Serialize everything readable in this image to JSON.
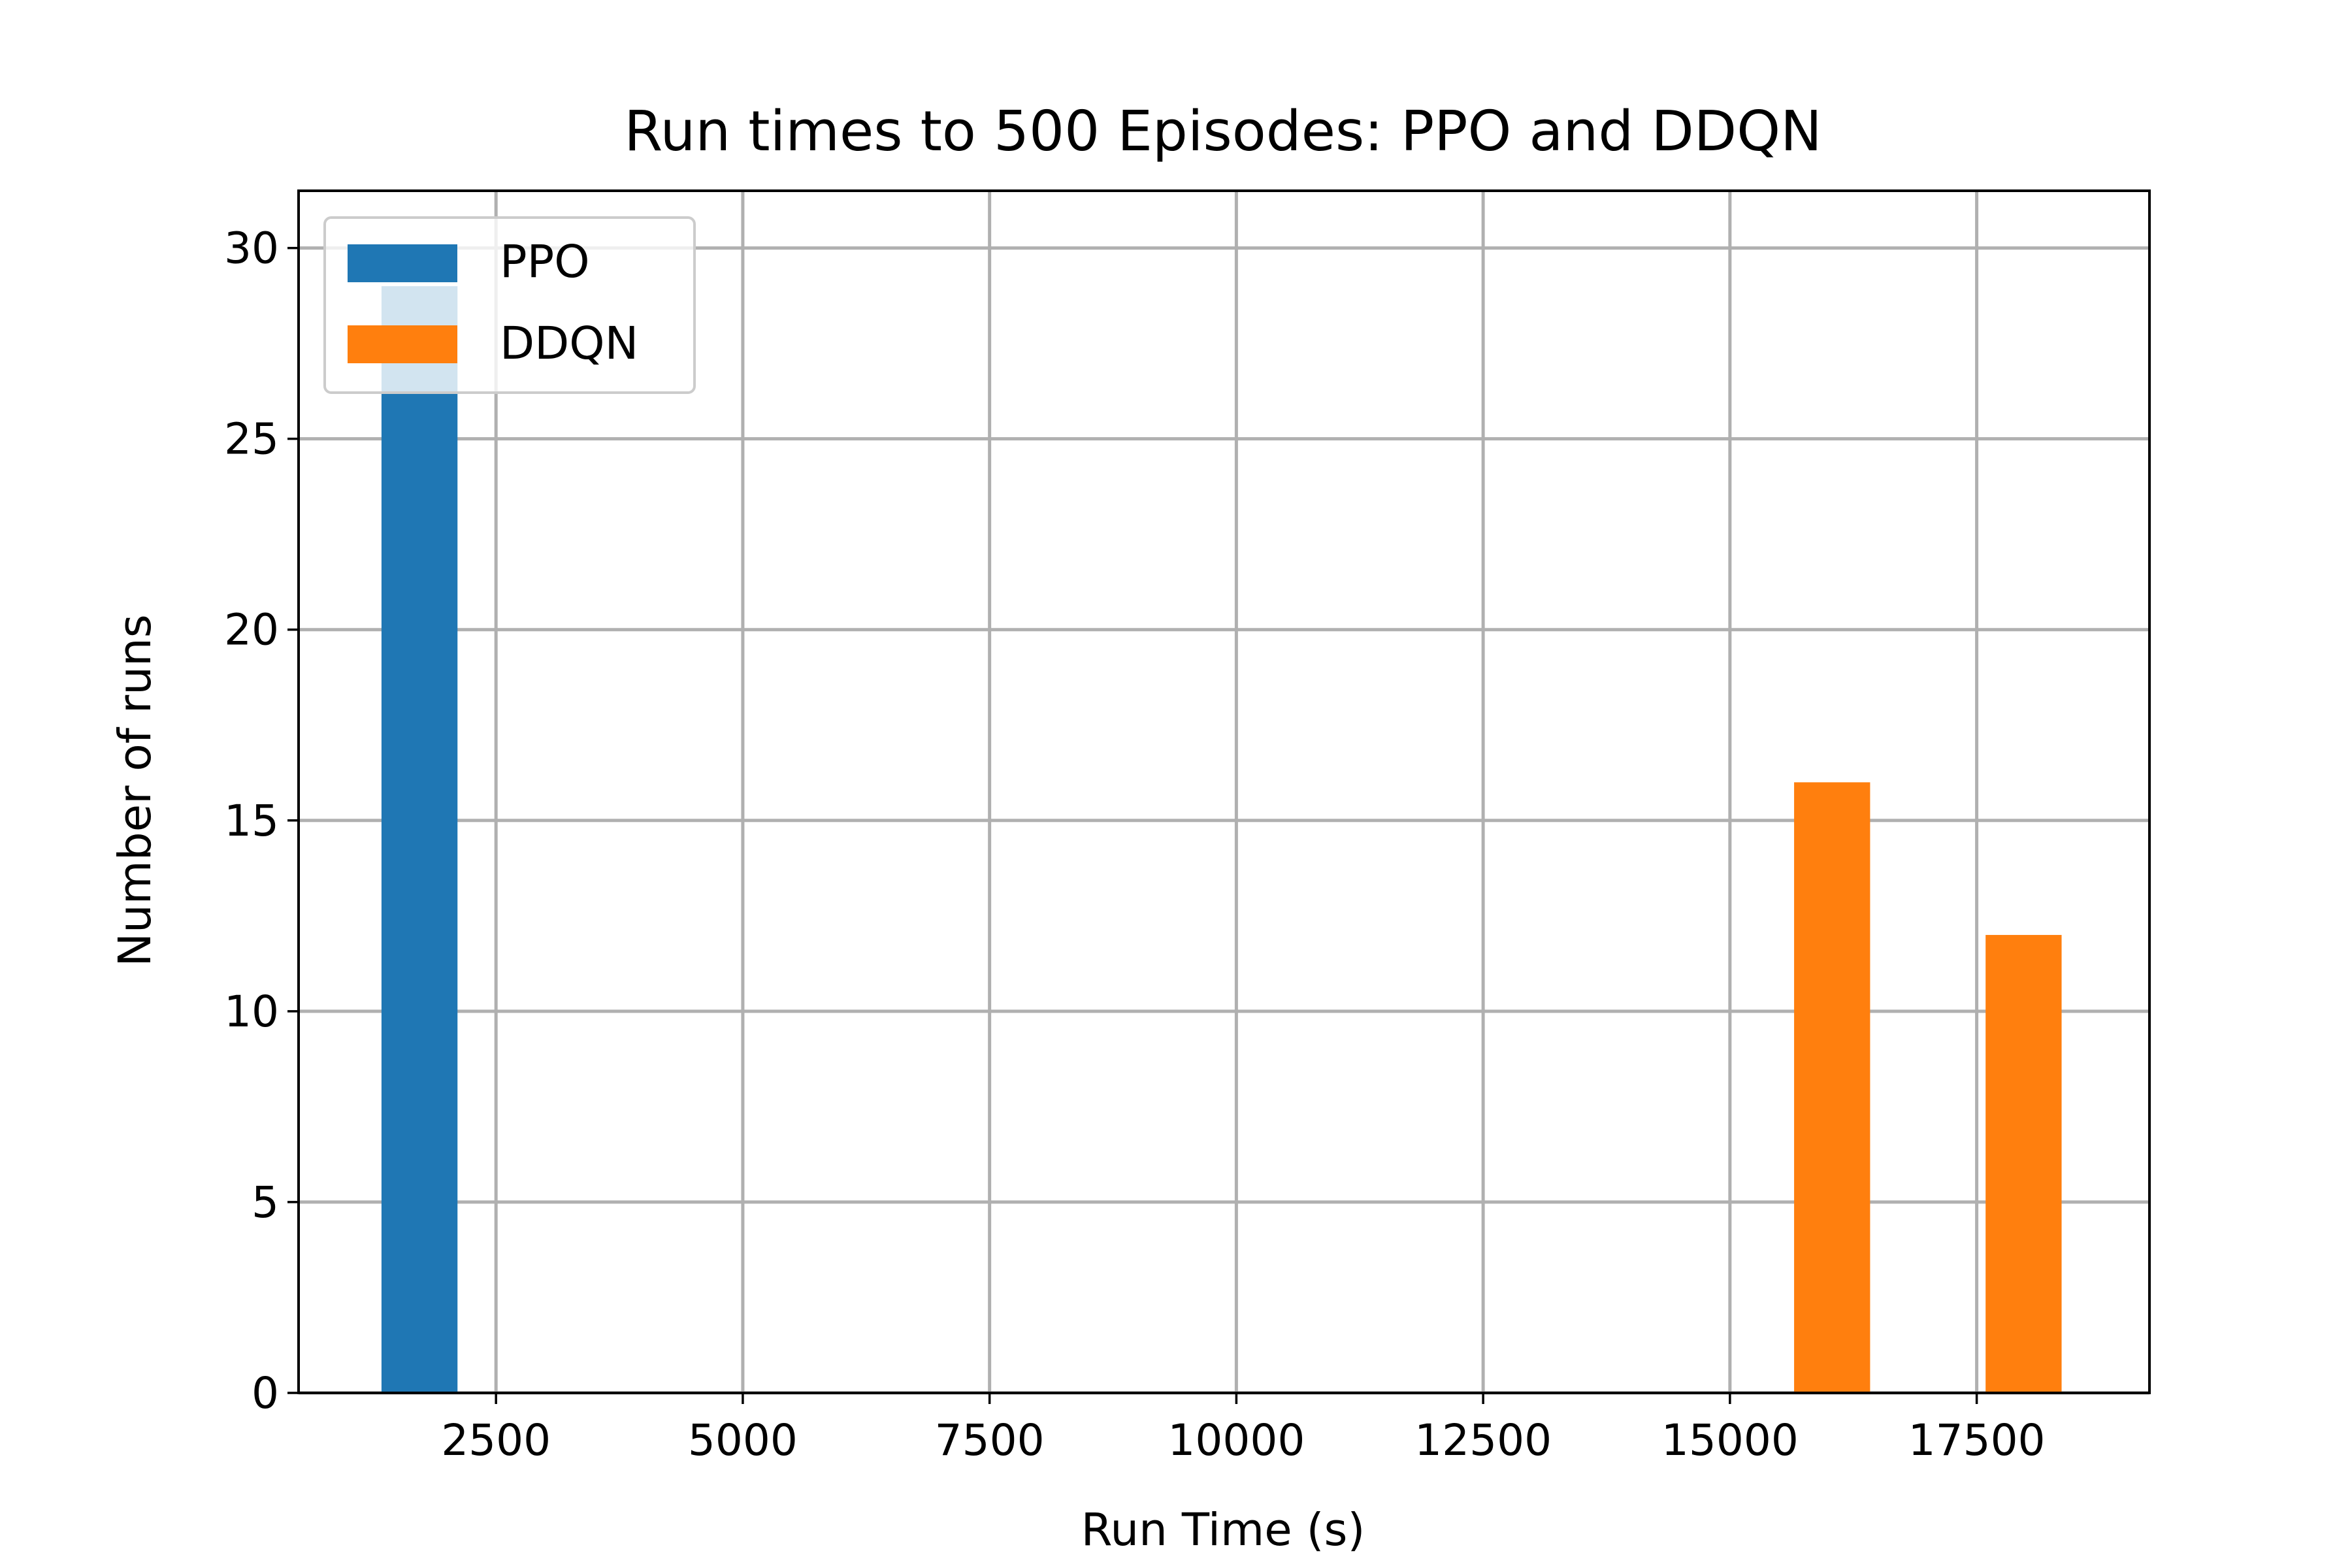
{
  "chart_data": {
    "type": "bar",
    "title": "Run times to 500 Episodes: PPO and DDQN",
    "xlabel": "Run Time (s)",
    "ylabel": "Number of runs",
    "xlim": [
      500,
      19250
    ],
    "ylim": [
      0,
      31.5
    ],
    "xticks": [
      2500,
      5000,
      7500,
      10000,
      12500,
      15000,
      17500
    ],
    "yticks": [
      0,
      5,
      10,
      15,
      20,
      25,
      30
    ],
    "grid": true,
    "legend_location": "upper-left",
    "series": [
      {
        "name": "PPO",
        "color": "#1f77b4",
        "bars": [
          {
            "x_start": 1340,
            "x_end": 2110,
            "value": 29
          }
        ]
      },
      {
        "name": "DDQN",
        "color": "#ff7f0e",
        "bars": [
          {
            "x_start": 15650,
            "x_end": 16420,
            "value": 16
          },
          {
            "x_start": 17590,
            "x_end": 18360,
            "value": 12
          }
        ]
      }
    ]
  }
}
